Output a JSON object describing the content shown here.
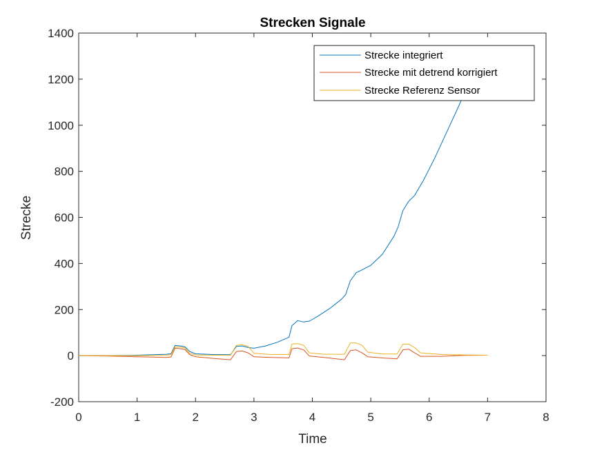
{
  "chart_data": {
    "type": "line",
    "title": "Strecken Signale",
    "xlabel": "Time",
    "ylabel": "Strecke",
    "xlim": [
      0,
      8
    ],
    "ylim": [
      -200,
      1400
    ],
    "xticks": [
      "0",
      "1",
      "2",
      "3",
      "4",
      "5",
      "6",
      "7",
      "8"
    ],
    "yticks": [
      "-200",
      "0",
      "200",
      "400",
      "600",
      "800",
      "1000",
      "1200",
      "1400"
    ],
    "grid": false,
    "legend_position": "top-right",
    "series": [
      {
        "name": "Strecke integriert",
        "color": "#0072BD",
        "points": [
          [
            0,
            0
          ],
          [
            0.5,
            0
          ],
          [
            1.0,
            2
          ],
          [
            1.5,
            6
          ],
          [
            1.58,
            8
          ],
          [
            1.65,
            44
          ],
          [
            1.75,
            42
          ],
          [
            1.82,
            38
          ],
          [
            1.9,
            18
          ],
          [
            2.0,
            8
          ],
          [
            2.3,
            5
          ],
          [
            2.6,
            4
          ],
          [
            2.7,
            40
          ],
          [
            2.8,
            42
          ],
          [
            2.9,
            35
          ],
          [
            3.0,
            32
          ],
          [
            3.2,
            42
          ],
          [
            3.4,
            58
          ],
          [
            3.6,
            80
          ],
          [
            3.65,
            130
          ],
          [
            3.75,
            152
          ],
          [
            3.85,
            146
          ],
          [
            3.95,
            150
          ],
          [
            4.1,
            172
          ],
          [
            4.3,
            205
          ],
          [
            4.5,
            245
          ],
          [
            4.57,
            265
          ],
          [
            4.65,
            325
          ],
          [
            4.75,
            360
          ],
          [
            4.85,
            372
          ],
          [
            5.0,
            392
          ],
          [
            5.2,
            440
          ],
          [
            5.4,
            520
          ],
          [
            5.47,
            560
          ],
          [
            5.55,
            630
          ],
          [
            5.65,
            670
          ],
          [
            5.75,
            695
          ],
          [
            5.9,
            760
          ],
          [
            6.1,
            860
          ],
          [
            6.3,
            970
          ],
          [
            6.5,
            1080
          ],
          [
            6.7,
            1195
          ],
          [
            6.74,
            1220
          ]
        ]
      },
      {
        "name": "Strecke mit detrend korrigiert",
        "color": "#D95319",
        "points": [
          [
            0,
            0
          ],
          [
            0.5,
            -2
          ],
          [
            1.0,
            -5
          ],
          [
            1.5,
            -8
          ],
          [
            1.58,
            -6
          ],
          [
            1.65,
            32
          ],
          [
            1.75,
            30
          ],
          [
            1.82,
            26
          ],
          [
            1.9,
            5
          ],
          [
            2.0,
            -5
          ],
          [
            2.3,
            -12
          ],
          [
            2.6,
            -18
          ],
          [
            2.7,
            18
          ],
          [
            2.8,
            20
          ],
          [
            2.9,
            12
          ],
          [
            3.0,
            -5
          ],
          [
            3.3,
            -8
          ],
          [
            3.6,
            -10
          ],
          [
            3.65,
            30
          ],
          [
            3.75,
            33
          ],
          [
            3.85,
            25
          ],
          [
            3.95,
            -2
          ],
          [
            4.2,
            -8
          ],
          [
            4.55,
            -18
          ],
          [
            4.65,
            22
          ],
          [
            4.75,
            25
          ],
          [
            4.85,
            12
          ],
          [
            4.95,
            -5
          ],
          [
            5.2,
            -10
          ],
          [
            5.45,
            -14
          ],
          [
            5.55,
            25
          ],
          [
            5.65,
            28
          ],
          [
            5.75,
            12
          ],
          [
            5.85,
            -3
          ],
          [
            6.2,
            -3
          ],
          [
            6.6,
            1
          ],
          [
            7.0,
            2
          ]
        ]
      },
      {
        "name": "Strecke Referenz Sensor",
        "color": "#EDB120",
        "points": [
          [
            0,
            0
          ],
          [
            0.5,
            0
          ],
          [
            1.0,
            0
          ],
          [
            1.5,
            2
          ],
          [
            1.58,
            4
          ],
          [
            1.65,
            38
          ],
          [
            1.75,
            37
          ],
          [
            1.82,
            33
          ],
          [
            1.9,
            10
          ],
          [
            2.0,
            3
          ],
          [
            2.3,
            2
          ],
          [
            2.6,
            2
          ],
          [
            2.7,
            45
          ],
          [
            2.8,
            47
          ],
          [
            2.9,
            40
          ],
          [
            3.0,
            10
          ],
          [
            3.3,
            5
          ],
          [
            3.6,
            5
          ],
          [
            3.65,
            50
          ],
          [
            3.75,
            52
          ],
          [
            3.85,
            45
          ],
          [
            3.95,
            12
          ],
          [
            4.2,
            6
          ],
          [
            4.55,
            6
          ],
          [
            4.65,
            55
          ],
          [
            4.75,
            55
          ],
          [
            4.85,
            45
          ],
          [
            4.95,
            15
          ],
          [
            5.2,
            7
          ],
          [
            5.45,
            7
          ],
          [
            5.55,
            50
          ],
          [
            5.65,
            50
          ],
          [
            5.75,
            35
          ],
          [
            5.85,
            12
          ],
          [
            6.2,
            5
          ],
          [
            6.6,
            3
          ],
          [
            7.0,
            2
          ]
        ]
      }
    ]
  }
}
